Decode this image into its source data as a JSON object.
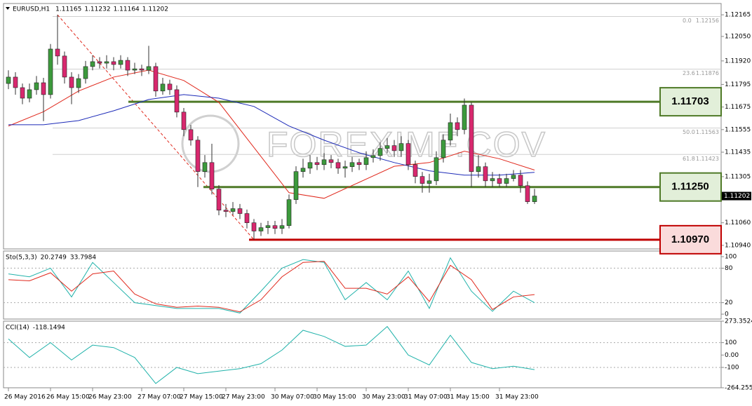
{
  "chart_data": {
    "type": "candlestick",
    "symbol": "EURUSD,H1",
    "header_ohlc": [
      1.11165,
      1.11232,
      1.11164,
      1.11202
    ],
    "categories": [
      "26 May 2016",
      null,
      null,
      null,
      null,
      null,
      "26 May 15:00",
      null,
      null,
      null,
      null,
      null,
      "26 May 23:00",
      null,
      null,
      null,
      null,
      null,
      null,
      "27 May 07:00",
      null,
      null,
      null,
      null,
      null,
      "27 May 15:00",
      null,
      null,
      null,
      null,
      null,
      "27 May 23:00",
      null,
      null,
      null,
      null,
      null,
      null,
      "30 May 07:00",
      null,
      null,
      null,
      null,
      null,
      "30 May 15:00",
      null,
      null,
      null,
      null,
      null,
      null,
      "30 May 23:00",
      null,
      null,
      null,
      null,
      null,
      "31 May 07:00",
      null,
      null,
      null,
      null,
      null,
      "31 May 15:00",
      null,
      null,
      null,
      null,
      null,
      null,
      "31 May 23:00",
      null,
      null,
      null,
      null,
      null
    ],
    "open": [
      1.118,
      1.11834,
      1.11778,
      1.11722,
      1.11767,
      1.11804,
      1.11741,
      1.11983,
      1.11946,
      1.11834,
      1.11778,
      1.11826,
      1.1189,
      1.11916,
      1.11908,
      1.11916,
      1.11901,
      1.11923,
      1.11871,
      1.11878,
      1.11871,
      1.1189,
      1.1176,
      1.11797,
      1.11767,
      1.11648,
      1.11555,
      1.11499,
      1.11332,
      1.1138,
      1.11239,
      1.11127,
      1.1112,
      1.11135,
      1.11109,
      1.1106,
      1.11016,
      1.11034,
      1.11045,
      1.1103,
      1.11045,
      1.11183,
      1.11332,
      1.1135,
      1.1138,
      1.11369,
      1.11395,
      1.1138,
      1.1135,
      1.11358,
      1.1138,
      1.11369,
      1.11406,
      1.11417,
      1.11455,
      1.1147,
      1.11443,
      1.11481,
      1.11369,
      1.11306,
      1.11269,
      1.11283,
      1.11406,
      1.11499,
      1.11592,
      1.11555,
      1.11685,
      1.11332,
      1.11358,
      1.11283,
      1.11295,
      1.11269,
      1.11295,
      1.11313,
      1.11257,
      1.11172
    ],
    "high": [
      1.1187,
      1.1186,
      1.118,
      1.118,
      1.1184,
      1.1183,
      1.1201,
      1.12165,
      1.1197,
      1.1186,
      1.1185,
      1.1192,
      1.1195,
      1.1194,
      1.1195,
      1.1194,
      1.1195,
      1.1194,
      1.1191,
      1.119,
      1.12,
      1.1191,
      1.1183,
      1.1182,
      1.1179,
      1.1167,
      1.1158,
      1.1152,
      1.1142,
      1.1148,
      1.1126,
      1.1116,
      1.1117,
      1.1116,
      1.1113,
      1.1108,
      1.1106,
      1.1107,
      1.1107,
      1.1108,
      1.1121,
      1.1136,
      1.114,
      1.1142,
      1.1141,
      1.1143,
      1.1142,
      1.114,
      1.1139,
      1.1141,
      1.114,
      1.1144,
      1.1145,
      1.1149,
      1.1151,
      1.115,
      1.1152,
      1.115,
      1.1139,
      1.1133,
      1.1132,
      1.1144,
      1.1153,
      1.1164,
      1.1162,
      1.1172,
      1.117,
      1.1142,
      1.1138,
      1.1133,
      1.1132,
      1.1132,
      1.1134,
      1.1134,
      1.1128,
      1.1124
    ],
    "low": [
      1.1177,
      1.1174,
      1.1169,
      1.117,
      1.1174,
      1.116,
      1.1172,
      1.119,
      1.118,
      1.1169,
      1.1175,
      1.118,
      1.1187,
      1.1188,
      1.1188,
      1.1187,
      1.1188,
      1.1184,
      1.1185,
      1.1184,
      1.1185,
      1.1173,
      1.1174,
      1.1174,
      1.1162,
      1.1152,
      1.1147,
      1.1125,
      1.113,
      1.1121,
      1.111,
      1.1109,
      1.111,
      1.1108,
      1.1103,
      1.1097,
      1.1099,
      1.11,
      1.11,
      1.11,
      1.1103,
      1.1116,
      1.113,
      1.1132,
      1.1134,
      1.1134,
      1.1135,
      1.1132,
      1.113,
      1.1133,
      1.1134,
      1.1134,
      1.1138,
      1.1139,
      1.1143,
      1.1141,
      1.1141,
      1.1134,
      1.1127,
      1.1122,
      1.1122,
      1.1126,
      1.1138,
      1.1147,
      1.1152,
      1.1153,
      1.1125,
      1.113,
      1.1125,
      1.1125,
      1.1125,
      1.1125,
      1.1128,
      1.1122,
      1.1116,
      1.1116
    ],
    "close": [
      1.11834,
      1.11778,
      1.11722,
      1.11767,
      1.11804,
      1.11741,
      1.11983,
      1.11946,
      1.11834,
      1.11778,
      1.11826,
      1.1189,
      1.11916,
      1.11908,
      1.11916,
      1.11901,
      1.11923,
      1.11871,
      1.11878,
      1.11871,
      1.1189,
      1.1176,
      1.11797,
      1.11767,
      1.11648,
      1.11555,
      1.11499,
      1.11332,
      1.1138,
      1.11239,
      1.11127,
      1.1112,
      1.11135,
      1.11109,
      1.1106,
      1.11016,
      1.11034,
      1.11045,
      1.1103,
      1.11045,
      1.11183,
      1.11332,
      1.1135,
      1.1138,
      1.11369,
      1.11395,
      1.1138,
      1.1135,
      1.11358,
      1.1138,
      1.11369,
      1.11406,
      1.11417,
      1.11455,
      1.1147,
      1.11443,
      1.11481,
      1.11369,
      1.11306,
      1.11269,
      1.11283,
      1.11406,
      1.11499,
      1.11592,
      1.11555,
      1.11685,
      1.11332,
      1.11358,
      1.11283,
      1.11295,
      1.11269,
      1.11295,
      1.11313,
      1.11257,
      1.11172,
      1.11202
    ],
    "up_color": "#3c9a3c",
    "down_color": "#d8286e",
    "ylim": [
      1.10921,
      1.12225
    ],
    "yticks": [
      1.12165,
      {
        "value": 1.1205,
        "label": "1.12050"
      },
      {
        "value": 1.1192,
        "label": "1.11920"
      },
      1.11795,
      1.11675,
      1.11555,
      1.11435,
      1.11305,
      {
        "value": 1.1106,
        "label": "1.11060"
      },
      {
        "value": 1.1094,
        "label": "1.10940"
      }
    ],
    "last_price": 1.11202,
    "series": [
      {
        "color": "#e0281c",
        "x": [
          0,
          5,
          10,
          15,
          20,
          25,
          30,
          35,
          40,
          45,
          50,
          55,
          60,
          65,
          70,
          75
        ],
        "values": [
          1.11574,
          1.1165,
          1.1176,
          1.11834,
          1.11871,
          1.11816,
          1.117,
          1.1146,
          1.1122,
          1.1119,
          1.11275,
          1.1136,
          1.1138,
          1.1144,
          1.114,
          1.1134
        ]
      },
      {
        "color": "#1c2ab8",
        "x": [
          0,
          5,
          10,
          15,
          20,
          25,
          30,
          35,
          40,
          45,
          50,
          55,
          60,
          65,
          70,
          75
        ],
        "values": [
          1.11581,
          1.11581,
          1.11603,
          1.11655,
          1.11715,
          1.11741,
          1.11722,
          1.11678,
          1.11574,
          1.11499,
          1.11432,
          1.1138,
          1.11336,
          1.11313,
          1.11313,
          1.11328
        ]
      }
    ],
    "levels": [
      {
        "value": 1.11703,
        "color": "#4f7a28",
        "fill": "#e2efd9"
      },
      {
        "value": 1.1125,
        "label": "1.11250",
        "color": "#4f7a28",
        "fill": "#e2efd9"
      },
      {
        "value": 1.1097,
        "label": "1.10970",
        "color": "#c00000",
        "fill": "#fadbdb"
      }
    ],
    "fibonacci": {
      "color": "#e0281c",
      "levels": [
        {
          "ratio": "0.0",
          "value": 1.12156
        },
        {
          "ratio": "23.6",
          "value": 1.11876
        },
        {
          "ratio": "50.0",
          "value": 1.11563
        },
        {
          "ratio": "61.8",
          "value": 1.11423
        }
      ]
    },
    "watermark": "FOREXIMF.COV",
    "stochastic": {
      "label": "Sto(5,3,3)",
      "readings": [
        20.2749,
        33.7984
      ],
      "ylim": [
        -8.5,
        109.8
      ],
      "yticks": [
        100,
        80,
        20,
        0
      ],
      "levels": [
        80,
        20
      ],
      "x": [
        0,
        3,
        6,
        9,
        12,
        15,
        18,
        21,
        24,
        27,
        30,
        33,
        36,
        39,
        42,
        45,
        48,
        51,
        54,
        57,
        60,
        63,
        66,
        69,
        72,
        75
      ],
      "series": [
        {
          "color": "#20b2aa",
          "values": [
            70,
            65,
            80,
            30,
            90,
            55,
            20,
            15,
            10,
            10,
            10,
            2,
            40,
            80,
            95,
            90,
            25,
            55,
            25,
            75,
            10,
            98,
            40,
            5,
            40,
            20
          ]
        },
        {
          "color": "#e0281c",
          "values": [
            60,
            58,
            72,
            40,
            70,
            75,
            35,
            18,
            12,
            14,
            12,
            4,
            25,
            65,
            90,
            92,
            45,
            45,
            35,
            65,
            22,
            85,
            60,
            8,
            30,
            34
          ]
        }
      ]
    },
    "cci": {
      "label": "CCI(14)",
      "readings": [
        -118.1494
      ],
      "ylim": [
        -264.2553,
        273.3524
      ],
      "yticks": [
        273.3524,
        100,
        {
          "value": 0,
          "label": "0.00"
        },
        -100,
        -264.2553
      ],
      "levels": [
        100,
        -100
      ],
      "x": [
        0,
        3,
        6,
        9,
        12,
        15,
        18,
        21,
        24,
        27,
        30,
        33,
        36,
        39,
        42,
        45,
        48,
        51,
        54,
        57,
        60,
        63,
        66,
        69,
        72,
        75
      ],
      "series": [
        {
          "color": "#20b2aa",
          "values": [
            130,
            -20,
            100,
            -40,
            80,
            60,
            -20,
            -230,
            -100,
            -150,
            -130,
            -110,
            -70,
            40,
            200,
            150,
            70,
            80,
            230,
            0,
            -80,
            160,
            -60,
            -110,
            -90,
            -118
          ]
        }
      ]
    }
  }
}
